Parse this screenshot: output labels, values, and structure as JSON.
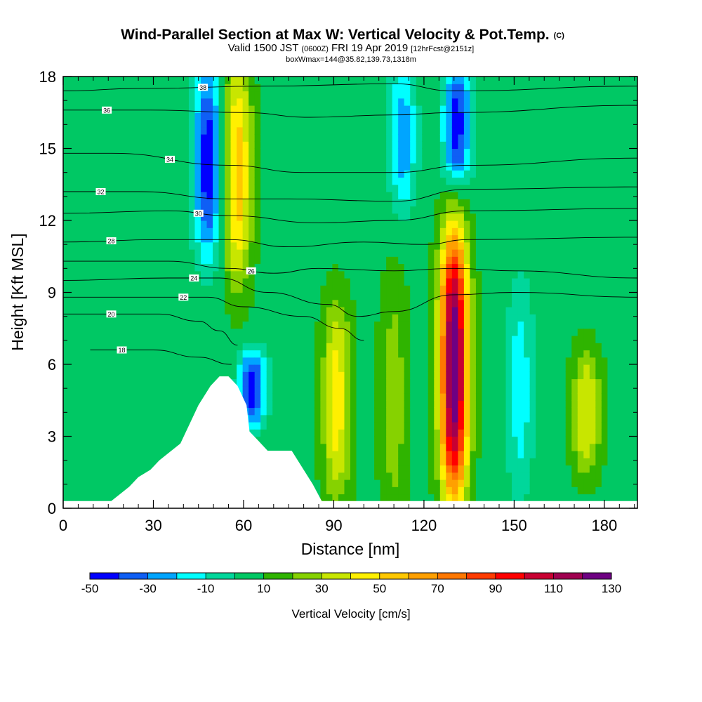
{
  "chart_data": {
    "type": "heatmap",
    "title": "Wind-Parallel Section at Max W: Vertical Velocity & Pot.Temp.",
    "title_mark": "(C)",
    "subtitle_prefix": "Valid 1500 JST",
    "subtitle_small": "(0600Z)",
    "subtitle_main": "FRI 19 Apr 2019",
    "subtitle_fcst": "[12hrFcst@2151z]",
    "subtitle_line2": "boxWmax=144@35.82,139.73,1318m",
    "xlabel": "Distance [nm]",
    "ylabel": "Height [Kft MSL]",
    "xlim": [
      0,
      191
    ],
    "ylim": [
      0,
      18
    ],
    "xticks": [
      "0",
      "30",
      "60",
      "90",
      "120",
      "150",
      "180"
    ],
    "yticks": [
      "0",
      "3",
      "6",
      "9",
      "12",
      "15",
      "18"
    ],
    "colorbar": {
      "label": "Vertical Velocity [cm/s]",
      "tick_labels": [
        "-50",
        "-30",
        "-10",
        "10",
        "30",
        "50",
        "70",
        "90",
        "110",
        "130"
      ],
      "levels": [
        -50,
        -40,
        -30,
        -20,
        -10,
        0,
        10,
        20,
        30,
        40,
        50,
        60,
        70,
        80,
        90,
        100,
        110,
        120,
        130
      ],
      "colors": [
        "#0000ff",
        "#0f5ff5",
        "#00a5ff",
        "#00ffff",
        "#00d79b",
        "#00c864",
        "#2fb400",
        "#86d200",
        "#c8e600",
        "#fff000",
        "#ffc800",
        "#ffa000",
        "#ff7800",
        "#ff3c00",
        "#ff0000",
        "#c80032",
        "#a00050",
        "#6e0082"
      ],
      "colors_note": "18 color bins between levels"
    },
    "w_features": [
      {
        "x": 48,
        "z_bottom": 11,
        "z_top": 18,
        "w": -45
      },
      {
        "x": 58,
        "z_bottom": 10,
        "z_top": 18,
        "w": 55
      },
      {
        "x": 63,
        "z_bottom": 4,
        "z_top": 6,
        "w": -45
      },
      {
        "x": 91,
        "z_bottom": 1,
        "z_top": 8,
        "w": 45
      },
      {
        "x": 110,
        "z_bottom": 0,
        "z_top": 9,
        "w": 25
      },
      {
        "x": 130,
        "z_bottom": 1,
        "z_top": 11,
        "w": 130
      },
      {
        "x": 131,
        "z_bottom": 14,
        "z_top": 18,
        "w": -45
      },
      {
        "x": 113,
        "z_bottom": 13,
        "z_top": 18,
        "w": -25
      },
      {
        "x": 174,
        "z_bottom": 2,
        "z_top": 6,
        "w": 40
      },
      {
        "x": 152,
        "z_bottom": 1,
        "z_top": 9,
        "w": -15
      }
    ],
    "terrain_profile": {
      "x": [
        0,
        16,
        19,
        22,
        25,
        29,
        32,
        36,
        39,
        42,
        45,
        49,
        52,
        55,
        58,
        61,
        62,
        65,
        68,
        71,
        76,
        80,
        83,
        86,
        191
      ],
      "z": [
        0.3,
        0.3,
        0.6,
        0.9,
        1.3,
        1.6,
        2.0,
        2.4,
        2.7,
        3.5,
        4.3,
        5.1,
        5.5,
        5.5,
        5.1,
        4.3,
        3.2,
        2.8,
        2.4,
        2.4,
        2.4,
        1.6,
        1.0,
        0.3,
        0.3
      ]
    },
    "theta_contours": [
      {
        "label": "18",
        "x": [
          9,
          30,
          45,
          56
        ],
        "y": [
          6.6,
          6.6,
          6.3,
          6.0
        ]
      },
      {
        "label": "20",
        "x": [
          0,
          32,
          45,
          52,
          58
        ],
        "y": [
          8.1,
          8.1,
          7.8,
          7.4,
          6.8
        ]
      },
      {
        "label": "22",
        "x": [
          0,
          32,
          48,
          60,
          80,
          92,
          100
        ],
        "y": [
          8.8,
          8.8,
          8.8,
          8.4,
          8.0,
          7.5,
          7.0
        ]
      },
      {
        "label": "24",
        "x": [
          0,
          35,
          52,
          68,
          88,
          98,
          110,
          130,
          150,
          191
        ],
        "y": [
          9.5,
          9.6,
          9.6,
          9.0,
          8.5,
          8.0,
          8.2,
          8.9,
          9.0,
          8.8
        ]
      },
      {
        "label": "26",
        "x": [
          0,
          35,
          55,
          70,
          85,
          110,
          130,
          150,
          191
        ],
        "y": [
          10.3,
          10.3,
          10.0,
          9.8,
          10.0,
          9.9,
          10.0,
          9.9,
          9.6
        ]
      },
      {
        "label": "28",
        "x": [
          0,
          32,
          55,
          75,
          100,
          120,
          135,
          191
        ],
        "y": [
          11.1,
          11.2,
          11.2,
          10.9,
          11.1,
          11.0,
          11.2,
          11.3
        ]
      },
      {
        "label": "30",
        "x": [
          0,
          35,
          55,
          85,
          110,
          135,
          191
        ],
        "y": [
          12.3,
          12.4,
          12.2,
          11.9,
          12.0,
          12.4,
          12.5
        ]
      },
      {
        "label": "32",
        "x": [
          0,
          25,
          55,
          75,
          110,
          135,
          191
        ],
        "y": [
          13.2,
          13.2,
          12.9,
          12.9,
          12.8,
          13.3,
          13.4
        ]
      },
      {
        "label": "34",
        "x": [
          0,
          16,
          55,
          80,
          110,
          135,
          191
        ],
        "y": [
          14.8,
          14.8,
          14.3,
          14.0,
          14.0,
          14.3,
          14.6
        ]
      },
      {
        "label": "36",
        "x": [
          0,
          29,
          60,
          82,
          110,
          130,
          191
        ],
        "y": [
          16.6,
          16.6,
          16.5,
          16.3,
          16.4,
          16.5,
          16.8
        ]
      },
      {
        "label": "38",
        "x": [
          0,
          25,
          68,
          110,
          130,
          191
        ],
        "y": [
          17.4,
          17.5,
          17.6,
          17.7,
          17.4,
          17.6
        ]
      }
    ]
  }
}
